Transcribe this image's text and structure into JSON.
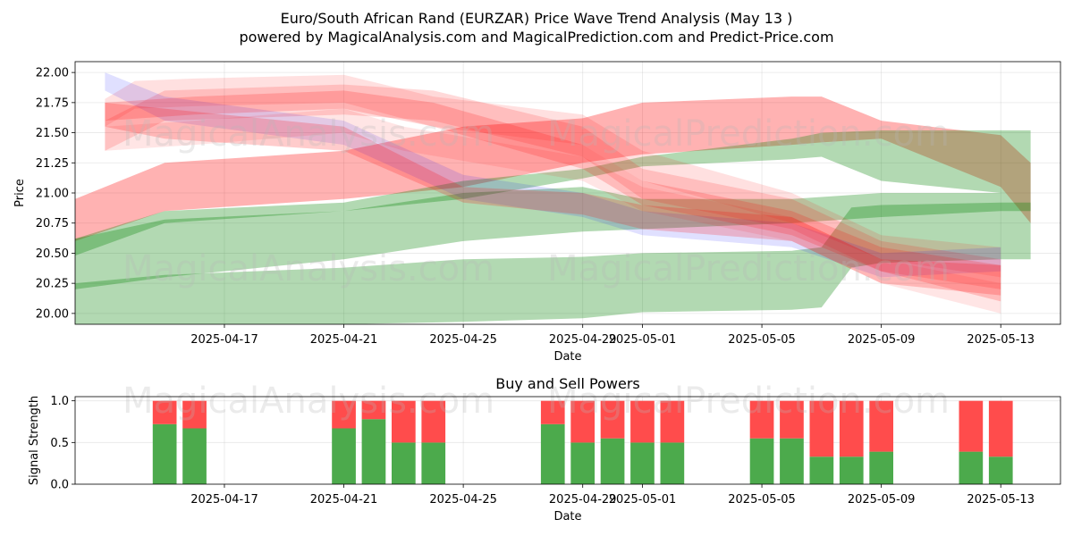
{
  "figure": {
    "title": "Euro/South African Rand (EURZAR) Price Wave Trend Analysis (May 13 )",
    "subtitle": "powered by MagicalAnalysis.com and MagicalPrediction.com and Predict-Price.com",
    "watermarks": [
      "MagicalAnalysis.com",
      "MagicalPrediction.com"
    ]
  },
  "chart_data": [
    {
      "type": "area",
      "title": "",
      "xlabel": "Date",
      "ylabel": "Price",
      "xlim": [
        "2025-04-12",
        "2025-05-15"
      ],
      "ylim": [
        19.91,
        22.09
      ],
      "x_ticks": [
        "2025-04-17",
        "2025-04-21",
        "2025-04-25",
        "2025-04-29",
        "2025-05-01",
        "2025-05-05",
        "2025-05-09",
        "2025-05-13"
      ],
      "x_tick_labels": [
        "2025-04-17",
        "2025-04-21",
        "2025-04-25",
        "2025-04-29",
        "2025-05-01",
        "2025-05-05",
        "2025-05-09",
        "2025-05-13"
      ],
      "y_ticks": [
        20.0,
        20.25,
        20.5,
        20.75,
        21.0,
        21.25,
        21.5,
        21.75,
        22.0
      ],
      "y_tick_labels": [
        "20.00",
        "20.25",
        "20.50",
        "20.75",
        "21.00",
        "21.25",
        "21.50",
        "21.75",
        "22.00"
      ],
      "grid": true,
      "series": [
        {
          "color": "#ff0000",
          "opacity": 0.3,
          "upper": [
            [
              "2025-04-12",
              20.95
            ],
            [
              "2025-04-15",
              21.25
            ],
            [
              "2025-04-21",
              21.35
            ],
            [
              "2025-04-25",
              21.55
            ],
            [
              "2025-04-29",
              21.62
            ],
            [
              "2025-05-01",
              21.75
            ],
            [
              "2025-05-06",
              21.8
            ],
            [
              "2025-05-07",
              21.8
            ],
            [
              "2025-05-09",
              21.6
            ],
            [
              "2025-05-13",
              21.48
            ],
            [
              "2025-05-14",
              21.25
            ]
          ],
          "lower": [
            [
              "2025-04-12",
              20.6
            ],
            [
              "2025-04-15",
              20.85
            ],
            [
              "2025-04-21",
              20.95
            ],
            [
              "2025-04-25",
              21.05
            ],
            [
              "2025-04-29",
              21.25
            ],
            [
              "2025-05-01",
              21.32
            ],
            [
              "2025-05-06",
              21.4
            ],
            [
              "2025-05-07",
              21.42
            ],
            [
              "2025-05-09",
              21.45
            ],
            [
              "2025-05-13",
              21.05
            ],
            [
              "2025-05-14",
              20.75
            ]
          ]
        },
        {
          "color": "#008000",
          "opacity": 0.3,
          "upper": [
            [
              "2025-04-12",
              20.62
            ],
            [
              "2025-04-15",
              20.85
            ],
            [
              "2025-04-21",
              20.92
            ],
            [
              "2025-04-25",
              21.1
            ],
            [
              "2025-04-29",
              21.2
            ],
            [
              "2025-05-01",
              21.3
            ],
            [
              "2025-05-06",
              21.45
            ],
            [
              "2025-05-07",
              21.5
            ],
            [
              "2025-05-09",
              21.52
            ],
            [
              "2025-05-13",
              21.52
            ],
            [
              "2025-05-14",
              21.52
            ]
          ],
          "lower": [
            [
              "2025-04-12",
              20.48
            ],
            [
              "2025-04-15",
              20.75
            ],
            [
              "2025-04-21",
              20.85
            ],
            [
              "2025-04-25",
              20.95
            ],
            [
              "2025-04-29",
              21.12
            ],
            [
              "2025-05-01",
              21.22
            ],
            [
              "2025-05-06",
              21.28
            ],
            [
              "2025-05-07",
              21.3
            ],
            [
              "2025-05-09",
              21.1
            ],
            [
              "2025-05-13",
              21.0
            ],
            [
              "2025-05-14",
              21.0
            ]
          ]
        },
        {
          "color": "#008000",
          "opacity": 0.3,
          "upper": [
            [
              "2025-04-12",
              20.62
            ],
            [
              "2025-04-15",
              20.78
            ],
            [
              "2025-04-21",
              20.85
            ],
            [
              "2025-04-25",
              21.0
            ],
            [
              "2025-04-29",
              21.05
            ],
            [
              "2025-05-01",
              20.95
            ],
            [
              "2025-05-06",
              20.95
            ],
            [
              "2025-05-09",
              21.0
            ],
            [
              "2025-05-13",
              21.0
            ],
            [
              "2025-05-14",
              21.0
            ]
          ],
          "lower": [
            [
              "2025-04-12",
              20.2
            ],
            [
              "2025-04-15",
              20.3
            ],
            [
              "2025-04-21",
              20.45
            ],
            [
              "2025-04-25",
              20.6
            ],
            [
              "2025-04-29",
              20.68
            ],
            [
              "2025-05-01",
              20.7
            ],
            [
              "2025-05-06",
              20.75
            ],
            [
              "2025-05-09",
              20.8
            ],
            [
              "2025-05-13",
              20.85
            ],
            [
              "2025-05-14",
              20.85
            ]
          ]
        },
        {
          "color": "#008000",
          "opacity": 0.3,
          "upper": [
            [
              "2025-04-12",
              20.25
            ],
            [
              "2025-04-15",
              20.32
            ],
            [
              "2025-04-21",
              20.38
            ],
            [
              "2025-04-25",
              20.45
            ],
            [
              "2025-04-29",
              20.47
            ],
            [
              "2025-05-01",
              20.5
            ],
            [
              "2025-05-06",
              20.52
            ],
            [
              "2025-05-07",
              20.55
            ],
            [
              "2025-05-08",
              20.88
            ],
            [
              "2025-05-09",
              20.9
            ],
            [
              "2025-05-13",
              20.92
            ],
            [
              "2025-05-14",
              20.92
            ]
          ],
          "lower": [
            [
              "2025-04-12",
              19.91
            ],
            [
              "2025-04-15",
              19.91
            ],
            [
              "2025-04-21",
              19.91
            ],
            [
              "2025-04-25",
              19.93
            ],
            [
              "2025-04-29",
              19.96
            ],
            [
              "2025-05-01",
              20.01
            ],
            [
              "2025-05-06",
              20.03
            ],
            [
              "2025-05-07",
              20.05
            ],
            [
              "2025-05-08",
              20.38
            ],
            [
              "2025-05-09",
              20.42
            ],
            [
              "2025-05-13",
              20.45
            ],
            [
              "2025-05-14",
              20.45
            ]
          ]
        },
        {
          "color": "#ff0000",
          "opacity": 0.12,
          "upper": [
            [
              "2025-04-13",
              21.78
            ],
            [
              "2025-04-14",
              21.93
            ],
            [
              "2025-04-16",
              21.95
            ],
            [
              "2025-04-21",
              21.98
            ],
            [
              "2025-04-24",
              21.8
            ],
            [
              "2025-04-29",
              21.65
            ],
            [
              "2025-05-01",
              21.35
            ],
            [
              "2025-05-06",
              21.0
            ],
            [
              "2025-05-09",
              20.65
            ],
            [
              "2025-05-13",
              20.55
            ]
          ],
          "lower": [
            [
              "2025-04-13",
              21.55
            ],
            [
              "2025-04-14",
              21.7
            ],
            [
              "2025-04-16",
              21.72
            ],
            [
              "2025-04-21",
              21.75
            ],
            [
              "2025-04-24",
              21.55
            ],
            [
              "2025-04-29",
              21.4
            ],
            [
              "2025-05-01",
              21.1
            ],
            [
              "2025-05-06",
              20.75
            ],
            [
              "2025-05-09",
              20.45
            ],
            [
              "2025-05-13",
              20.3
            ]
          ]
        },
        {
          "color": "#ff0000",
          "opacity": 0.15,
          "upper": [
            [
              "2025-04-13",
              21.6
            ],
            [
              "2025-04-15",
              21.85
            ],
            [
              "2025-04-21",
              21.9
            ],
            [
              "2025-04-24",
              21.85
            ],
            [
              "2025-04-29",
              21.55
            ],
            [
              "2025-05-01",
              21.2
            ],
            [
              "2025-05-06",
              20.95
            ],
            [
              "2025-05-09",
              20.6
            ],
            [
              "2025-05-13",
              20.45
            ]
          ],
          "lower": [
            [
              "2025-04-13",
              21.35
            ],
            [
              "2025-04-15",
              21.6
            ],
            [
              "2025-04-21",
              21.65
            ],
            [
              "2025-04-24",
              21.6
            ],
            [
              "2025-04-29",
              21.3
            ],
            [
              "2025-05-01",
              20.95
            ],
            [
              "2025-05-06",
              20.7
            ],
            [
              "2025-05-09",
              20.35
            ],
            [
              "2025-05-13",
              20.2
            ]
          ]
        },
        {
          "color": "#0000ff",
          "opacity": 0.12,
          "upper": [
            [
              "2025-04-13",
              22.0
            ],
            [
              "2025-04-15",
              21.8
            ],
            [
              "2025-04-21",
              21.6
            ],
            [
              "2025-04-25",
              21.15
            ],
            [
              "2025-04-29",
              21.0
            ],
            [
              "2025-05-01",
              20.85
            ],
            [
              "2025-05-06",
              20.75
            ],
            [
              "2025-05-09",
              20.5
            ],
            [
              "2025-05-13",
              20.55
            ]
          ],
          "lower": [
            [
              "2025-04-13",
              21.85
            ],
            [
              "2025-04-15",
              21.6
            ],
            [
              "2025-04-21",
              21.4
            ],
            [
              "2025-04-25",
              20.95
            ],
            [
              "2025-04-29",
              20.8
            ],
            [
              "2025-05-01",
              20.65
            ],
            [
              "2025-05-06",
              20.55
            ],
            [
              "2025-05-09",
              20.3
            ],
            [
              "2025-05-13",
              20.35
            ]
          ]
        },
        {
          "color": "#ff0000",
          "opacity": 0.2,
          "upper": [
            [
              "2025-04-13",
              21.75
            ],
            [
              "2025-04-15",
              21.7
            ],
            [
              "2025-04-21",
              21.55
            ],
            [
              "2025-04-25",
              21.05
            ],
            [
              "2025-04-29",
              21.0
            ],
            [
              "2025-05-01",
              20.9
            ],
            [
              "2025-05-06",
              20.8
            ],
            [
              "2025-05-09",
              20.45
            ],
            [
              "2025-05-13",
              20.4
            ]
          ],
          "lower": [
            [
              "2025-04-13",
              21.55
            ],
            [
              "2025-04-15",
              21.45
            ],
            [
              "2025-04-21",
              21.35
            ],
            [
              "2025-04-25",
              20.92
            ],
            [
              "2025-04-29",
              20.82
            ],
            [
              "2025-05-01",
              20.7
            ],
            [
              "2025-05-06",
              20.6
            ],
            [
              "2025-05-09",
              20.25
            ],
            [
              "2025-05-13",
              20.15
            ]
          ]
        },
        {
          "color": "#ff0000",
          "opacity": 0.18,
          "upper": [
            [
              "2025-04-13",
              21.75
            ],
            [
              "2025-04-16",
              21.8
            ],
            [
              "2025-04-21",
              21.85
            ],
            [
              "2025-04-24",
              21.75
            ],
            [
              "2025-04-29",
              21.4
            ],
            [
              "2025-05-01",
              21.1
            ],
            [
              "2025-05-06",
              20.85
            ],
            [
              "2025-05-09",
              20.55
            ],
            [
              "2025-05-13",
              20.4
            ]
          ],
          "lower": [
            [
              "2025-04-13",
              21.6
            ],
            [
              "2025-04-16",
              21.65
            ],
            [
              "2025-04-21",
              21.7
            ],
            [
              "2025-04-24",
              21.55
            ],
            [
              "2025-04-29",
              21.2
            ],
            [
              "2025-05-01",
              20.9
            ],
            [
              "2025-05-06",
              20.65
            ],
            [
              "2025-05-09",
              20.35
            ],
            [
              "2025-05-13",
              20.1
            ]
          ]
        },
        {
          "color": "#ff0000",
          "opacity": 0.1,
          "upper": [
            [
              "2025-04-13",
              21.55
            ],
            [
              "2025-04-16",
              21.6
            ],
            [
              "2025-04-21",
              21.7
            ],
            [
              "2025-04-23",
              21.55
            ],
            [
              "2025-04-29",
              21.3
            ],
            [
              "2025-05-01",
              21.05
            ],
            [
              "2025-05-06",
              20.8
            ],
            [
              "2025-05-09",
              20.45
            ],
            [
              "2025-05-13",
              20.25
            ]
          ],
          "lower": [
            [
              "2025-04-13",
              21.35
            ],
            [
              "2025-04-16",
              21.4
            ],
            [
              "2025-04-21",
              21.5
            ],
            [
              "2025-04-23",
              21.35
            ],
            [
              "2025-04-29",
              21.1
            ],
            [
              "2025-05-01",
              20.85
            ],
            [
              "2025-05-06",
              20.6
            ],
            [
              "2025-05-09",
              20.25
            ],
            [
              "2025-05-13",
              20.0
            ]
          ]
        }
      ]
    },
    {
      "type": "bar",
      "title": "Buy and Sell Powers",
      "xlabel": "Date",
      "ylabel": "Signal Strength",
      "xlim": [
        "2025-04-12",
        "2025-05-15"
      ],
      "ylim": [
        0,
        1.05
      ],
      "x_ticks": [
        "2025-04-17",
        "2025-04-21",
        "2025-04-25",
        "2025-04-29",
        "2025-05-01",
        "2025-05-05",
        "2025-05-09",
        "2025-05-13"
      ],
      "x_tick_labels": [
        "2025-04-17",
        "2025-04-21",
        "2025-04-25",
        "2025-04-29",
        "2025-05-01",
        "2025-05-05",
        "2025-05-09",
        "2025-05-13"
      ],
      "y_ticks": [
        0.0,
        0.5,
        1.0
      ],
      "y_tick_labels": [
        "0.0",
        "0.5",
        "1.0"
      ],
      "grid": true,
      "colors": {
        "buy": "#4caa4c",
        "sell": "#ff4c4c"
      },
      "categories": [
        "2025-04-15",
        "2025-04-16",
        "2025-04-21",
        "2025-04-22",
        "2025-04-23",
        "2025-04-24",
        "2025-04-28",
        "2025-04-29",
        "2025-04-30",
        "2025-05-01",
        "2025-05-02",
        "2025-05-05",
        "2025-05-06",
        "2025-05-07",
        "2025-05-08",
        "2025-05-09",
        "2025-05-12",
        "2025-05-13"
      ],
      "buy": [
        0.72,
        0.67,
        0.67,
        0.78,
        0.5,
        0.5,
        0.72,
        0.5,
        0.55,
        0.5,
        0.5,
        0.55,
        0.55,
        0.33,
        0.33,
        0.39,
        0.39,
        0.33
      ],
      "sell": [
        0.28,
        0.33,
        0.33,
        0.22,
        0.5,
        0.5,
        0.28,
        0.5,
        0.45,
        0.5,
        0.5,
        0.45,
        0.45,
        0.67,
        0.67,
        0.61,
        0.61,
        0.67
      ]
    }
  ]
}
